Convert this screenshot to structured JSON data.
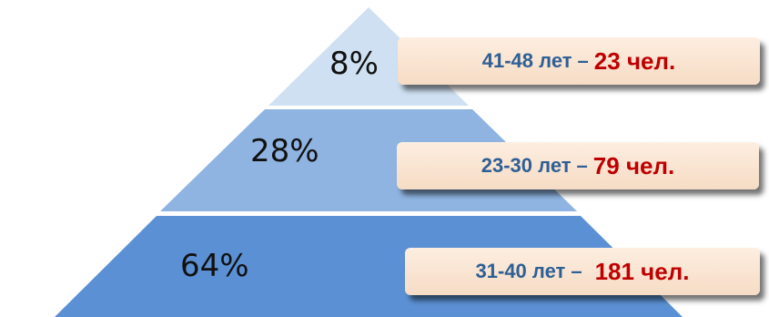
{
  "colors": {
    "top_tier": "#cfe0f2",
    "middle_tier": "#8fb4e1",
    "bottom_tier": "#5b91d4",
    "age_text": "#2e5f95",
    "count_text": "#c00000"
  },
  "tiers": [
    {
      "percent": "8%",
      "age": "41-48 лет",
      "dash": "–",
      "count": "23 чел."
    },
    {
      "percent": "28%",
      "age": "23-30 лет",
      "dash": "–",
      "count": "79 чел."
    },
    {
      "percent": "64%",
      "age": "31-40 лет",
      "dash": "–",
      "count": "181 чел."
    }
  ]
}
